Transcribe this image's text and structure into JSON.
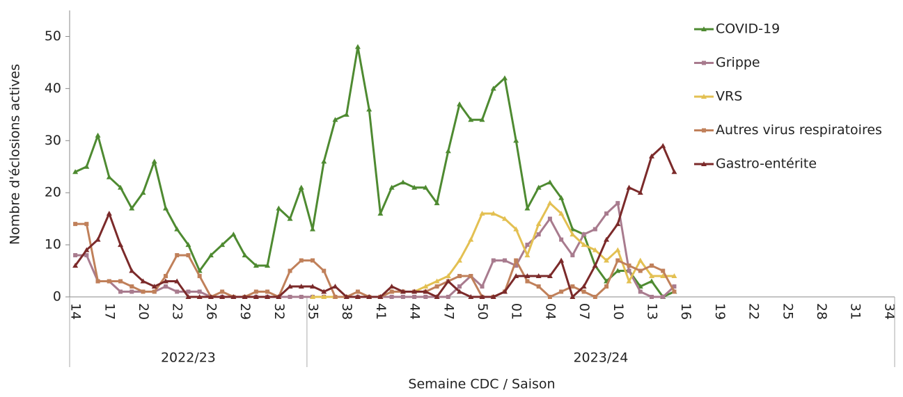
{
  "chart_data": {
    "type": "line",
    "y_label": "Nombre d'éclosions actives",
    "x_label": "Semaine CDC / Saison",
    "categories": [
      "14",
      null,
      null,
      "17",
      null,
      null,
      "20",
      null,
      null,
      "23",
      null,
      null,
      "26",
      null,
      null,
      "29",
      null,
      null,
      "32",
      null,
      null,
      "35",
      null,
      null,
      "38",
      null,
      null,
      "41",
      null,
      null,
      "44",
      null,
      null,
      "47",
      null,
      null,
      "50",
      null,
      null,
      "01",
      null,
      null,
      "04",
      null,
      null,
      "07",
      null,
      null,
      "10",
      null,
      null,
      "13",
      null,
      null,
      "16",
      null,
      null,
      "19",
      null,
      null,
      "22",
      null,
      null,
      "25",
      null,
      null,
      "28",
      null,
      null,
      "31",
      null,
      null,
      "34"
    ],
    "groups": [
      {
        "label": "2022/23",
        "count": 21
      },
      {
        "label": "2023/24",
        "count": 52
      }
    ],
    "ylim": [
      0,
      55
    ],
    "yticks": [
      0,
      10,
      20,
      30,
      40,
      50
    ],
    "grid": false,
    "series": [
      {
        "name": "COVID-19",
        "color": "#4e8a31",
        "marker": "triangle",
        "values": [
          24,
          25,
          31,
          23,
          21,
          17,
          20,
          26,
          17,
          13,
          10,
          5,
          8,
          10,
          12,
          8,
          6,
          6,
          17,
          15,
          21,
          13,
          26,
          34,
          35,
          48,
          36,
          16,
          21,
          22,
          21,
          21,
          18,
          28,
          37,
          34,
          34,
          40,
          42,
          30,
          17,
          21,
          22,
          19,
          13,
          12,
          6,
          3,
          5,
          5,
          2,
          3,
          0,
          1,
          null,
          null,
          null,
          null,
          null,
          null,
          null,
          null,
          null,
          null,
          null,
          null,
          null,
          null,
          null,
          null,
          null,
          null,
          null
        ]
      },
      {
        "name": "Grippe",
        "color": "#a87b8e",
        "marker": "square",
        "values": [
          8,
          8,
          3,
          3,
          1,
          1,
          1,
          1,
          2,
          1,
          1,
          1,
          0,
          0,
          0,
          0,
          0,
          0,
          0,
          0,
          0,
          0,
          0,
          0,
          0,
          0,
          0,
          0,
          0,
          0,
          0,
          0,
          0,
          0,
          2,
          4,
          2,
          7,
          7,
          6,
          10,
          12,
          15,
          11,
          8,
          12,
          13,
          16,
          18,
          5,
          1,
          0,
          0,
          2,
          null,
          null,
          null,
          null,
          null,
          null,
          null,
          null,
          null,
          null,
          null,
          null,
          null,
          null,
          null,
          null,
          null,
          null,
          null
        ]
      },
      {
        "name": "VRS",
        "color": "#e3c052",
        "marker": "triangle",
        "values": [
          null,
          null,
          null,
          null,
          null,
          null,
          null,
          null,
          null,
          null,
          null,
          null,
          null,
          null,
          null,
          null,
          null,
          null,
          null,
          null,
          null,
          0,
          0,
          0,
          0,
          0,
          0,
          0,
          1,
          1,
          1,
          2,
          3,
          4,
          7,
          11,
          16,
          16,
          15,
          13,
          8,
          14,
          18,
          16,
          12,
          10,
          9,
          7,
          9,
          3,
          7,
          4,
          4,
          4,
          null,
          null,
          null,
          null,
          null,
          null,
          null,
          null,
          null,
          null,
          null,
          null,
          null,
          null,
          null,
          null,
          null,
          null,
          null
        ]
      },
      {
        "name": "Autres virus respiratoires",
        "color": "#c0805a",
        "marker": "square",
        "values": [
          14,
          14,
          3,
          3,
          3,
          2,
          1,
          1,
          4,
          8,
          8,
          4,
          0,
          1,
          0,
          0,
          1,
          1,
          0,
          5,
          7,
          7,
          5,
          0,
          0,
          1,
          0,
          0,
          1,
          1,
          1,
          1,
          2,
          3,
          4,
          4,
          0,
          0,
          1,
          7,
          3,
          2,
          0,
          1,
          2,
          1,
          0,
          2,
          7,
          6,
          5,
          6,
          5,
          1,
          null,
          null,
          null,
          null,
          null,
          null,
          null,
          null,
          null,
          null,
          null,
          null,
          null,
          null,
          null,
          null,
          null,
          null,
          null
        ]
      },
      {
        "name": "Gastro-entérite",
        "color": "#7b2a2a",
        "marker": "triangle",
        "values": [
          6,
          9,
          11,
          16,
          10,
          5,
          3,
          2,
          3,
          3,
          0,
          0,
          0,
          0,
          0,
          0,
          0,
          0,
          0,
          2,
          2,
          2,
          1,
          2,
          0,
          0,
          0,
          0,
          2,
          1,
          1,
          1,
          0,
          3,
          1,
          0,
          0,
          0,
          1,
          4,
          4,
          4,
          4,
          7,
          0,
          2,
          6,
          11,
          14,
          21,
          20,
          27,
          29,
          24,
          null,
          null,
          null,
          null,
          null,
          null,
          null,
          null,
          null,
          null,
          null,
          null,
          null,
          null,
          null,
          null,
          null,
          null,
          null
        ]
      }
    ]
  }
}
